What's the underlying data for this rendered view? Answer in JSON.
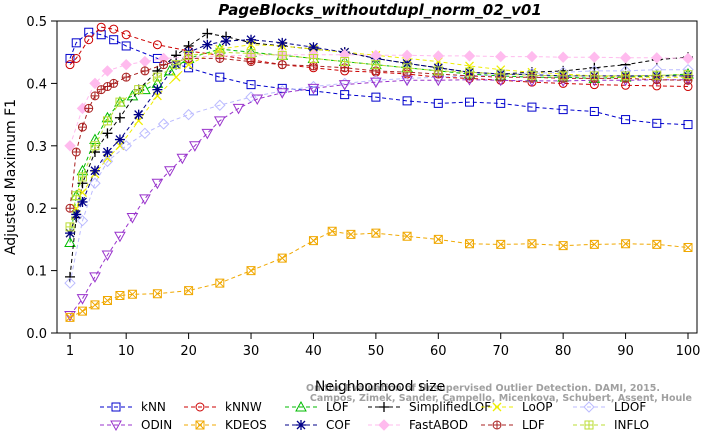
{
  "chart_data": {
    "type": "line",
    "title": "PageBlocks_withoutdupl_norm_02_v01",
    "xlabel": "Neighborhood size",
    "ylabel": "Adjusted Maximum F1",
    "xlim": [
      1,
      100
    ],
    "ylim": [
      0.0,
      0.5
    ],
    "x_ticks": [
      "1",
      "10",
      "20",
      "30",
      "40",
      "50",
      "60",
      "70",
      "80",
      "90",
      "100"
    ],
    "y_ticks": [
      "0.0",
      "0.1",
      "0.2",
      "0.3",
      "0.4",
      "0.5"
    ],
    "grid": false,
    "legend_position": "bottom",
    "series": [
      {
        "name": "kNN",
        "color": "#0000cc",
        "marker": "square",
        "x": [
          1,
          2,
          4,
          6,
          8,
          10,
          15,
          20,
          25,
          30,
          35,
          40,
          45,
          50,
          55,
          60,
          65,
          70,
          75,
          80,
          85,
          90,
          95,
          100
        ],
        "y": [
          0.44,
          0.465,
          0.482,
          0.478,
          0.47,
          0.46,
          0.44,
          0.425,
          0.41,
          0.398,
          0.392,
          0.388,
          0.382,
          0.378,
          0.372,
          0.368,
          0.37,
          0.368,
          0.362,
          0.358,
          0.355,
          0.342,
          0.336,
          0.334
        ]
      },
      {
        "name": "kNNW",
        "color": "#cc0000",
        "marker": "circle",
        "x": [
          1,
          2,
          4,
          6,
          8,
          10,
          15,
          20,
          25,
          30,
          35,
          40,
          45,
          50,
          55,
          60,
          65,
          70,
          75,
          80,
          85,
          90,
          95,
          100
        ],
        "y": [
          0.43,
          0.44,
          0.47,
          0.49,
          0.487,
          0.478,
          0.462,
          0.452,
          0.445,
          0.438,
          0.43,
          0.425,
          0.42,
          0.418,
          0.415,
          0.41,
          0.408,
          0.405,
          0.402,
          0.4,
          0.398,
          0.397,
          0.396,
          0.395
        ]
      },
      {
        "name": "LOF",
        "color": "#00bb00",
        "marker": "triangle-up",
        "x": [
          1,
          2,
          3,
          5,
          7,
          9,
          11,
          13,
          15,
          17,
          20,
          25,
          30,
          35,
          40,
          45,
          50,
          55,
          60,
          65,
          70,
          75,
          80,
          85,
          90,
          95,
          100
        ],
        "y": [
          0.145,
          0.22,
          0.26,
          0.31,
          0.345,
          0.37,
          0.38,
          0.39,
          0.4,
          0.42,
          0.44,
          0.455,
          0.45,
          0.445,
          0.44,
          0.435,
          0.43,
          0.425,
          0.42,
          0.415,
          0.412,
          0.41,
          0.41,
          0.408,
          0.41,
          0.412,
          0.415
        ]
      },
      {
        "name": "SimplifiedLOF",
        "color": "#000000",
        "marker": "plus",
        "x": [
          1,
          2,
          3,
          5,
          7,
          9,
          12,
          15,
          18,
          20,
          23,
          26,
          30,
          35,
          40,
          45,
          50,
          55,
          60,
          65,
          70,
          75,
          80,
          85,
          90,
          95,
          100
        ],
        "y": [
          0.09,
          0.185,
          0.24,
          0.29,
          0.32,
          0.345,
          0.39,
          0.42,
          0.445,
          0.46,
          0.48,
          0.475,
          0.465,
          0.46,
          0.455,
          0.45,
          0.44,
          0.432,
          0.425,
          0.418,
          0.415,
          0.418,
          0.42,
          0.425,
          0.43,
          0.438,
          0.442
        ]
      },
      {
        "name": "LoOP",
        "color": "#eeee00",
        "marker": "x",
        "x": [
          1,
          2,
          3,
          5,
          7,
          9,
          12,
          15,
          18,
          20,
          25,
          30,
          35,
          40,
          45,
          50,
          55,
          60,
          65,
          70,
          75,
          80,
          85,
          90,
          95,
          100
        ],
        "y": [
          0.16,
          0.2,
          0.225,
          0.255,
          0.28,
          0.3,
          0.34,
          0.38,
          0.41,
          0.43,
          0.455,
          0.462,
          0.46,
          0.455,
          0.45,
          0.445,
          0.44,
          0.435,
          0.428,
          0.422,
          0.418,
          0.415,
          0.412,
          0.41,
          0.41,
          0.41
        ]
      },
      {
        "name": "LDOF",
        "color": "#bbbbff",
        "marker": "diamond",
        "x": [
          1,
          3,
          5,
          7,
          10,
          13,
          16,
          20,
          25,
          30,
          35,
          40,
          45,
          50,
          55,
          60,
          65,
          70,
          75,
          80,
          85,
          90,
          95,
          100
        ],
        "y": [
          0.08,
          0.18,
          0.24,
          0.275,
          0.3,
          0.32,
          0.335,
          0.35,
          0.365,
          0.378,
          0.388,
          0.395,
          0.4,
          0.405,
          0.408,
          0.41,
          0.412,
          0.414,
          0.416,
          0.418,
          0.42,
          0.42,
          0.422,
          0.422
        ]
      },
      {
        "name": "ODIN",
        "color": "#9933cc",
        "marker": "triangle-down",
        "x": [
          1,
          3,
          5,
          7,
          9,
          11,
          13,
          15,
          17,
          19,
          21,
          23,
          25,
          28,
          31,
          35,
          40,
          45,
          50,
          55,
          60,
          65,
          70,
          75,
          80,
          85,
          90,
          95,
          100
        ],
        "y": [
          0.028,
          0.055,
          0.09,
          0.125,
          0.155,
          0.185,
          0.215,
          0.24,
          0.26,
          0.28,
          0.3,
          0.32,
          0.34,
          0.36,
          0.375,
          0.385,
          0.392,
          0.398,
          0.402,
          0.405,
          0.405,
          0.406,
          0.405,
          0.404,
          0.404,
          0.405,
          0.405,
          0.406,
          0.406
        ]
      },
      {
        "name": "KDEOS",
        "color": "#f0a800",
        "marker": "square-x",
        "x": [
          1,
          3,
          5,
          7,
          9,
          11,
          15,
          20,
          25,
          30,
          35,
          40,
          43,
          46,
          50,
          55,
          60,
          65,
          70,
          75,
          80,
          85,
          90,
          95,
          100
        ],
        "y": [
          0.025,
          0.035,
          0.045,
          0.052,
          0.06,
          0.062,
          0.063,
          0.068,
          0.08,
          0.1,
          0.12,
          0.148,
          0.163,
          0.158,
          0.16,
          0.155,
          0.15,
          0.143,
          0.142,
          0.143,
          0.14,
          0.142,
          0.143,
          0.142,
          0.137
        ]
      },
      {
        "name": "COF",
        "color": "#000088",
        "marker": "asterisk",
        "x": [
          1,
          2,
          3,
          5,
          7,
          9,
          12,
          15,
          18,
          20,
          23,
          26,
          30,
          35,
          40,
          45,
          50,
          55,
          60,
          65,
          70,
          75,
          80,
          85,
          90,
          95,
          100
        ],
        "y": [
          0.16,
          0.19,
          0.21,
          0.26,
          0.29,
          0.31,
          0.35,
          0.39,
          0.43,
          0.45,
          0.462,
          0.468,
          0.47,
          0.465,
          0.458,
          0.45,
          0.44,
          0.432,
          0.425,
          0.418,
          0.415,
          0.414,
          0.412,
          0.412,
          0.412,
          0.412,
          0.412
        ]
      },
      {
        "name": "FastABOD",
        "color": "#ffbbee",
        "marker": "diamond-filled",
        "x": [
          1,
          3,
          5,
          7,
          10,
          13,
          16,
          20,
          25,
          30,
          35,
          40,
          45,
          50,
          55,
          60,
          65,
          70,
          75,
          80,
          85,
          90,
          95,
          100
        ],
        "y": [
          0.3,
          0.36,
          0.4,
          0.42,
          0.43,
          0.435,
          0.44,
          0.442,
          0.444,
          0.445,
          0.446,
          0.446,
          0.446,
          0.445,
          0.445,
          0.444,
          0.444,
          0.443,
          0.443,
          0.442,
          0.442,
          0.441,
          0.441,
          0.44
        ]
      },
      {
        "name": "LDF",
        "color": "#aa2222",
        "marker": "circle-plus",
        "x": [
          1,
          2,
          3,
          4,
          5,
          6,
          7,
          8,
          10,
          13,
          16,
          20,
          25,
          30,
          35,
          40,
          45,
          50,
          55,
          60,
          65,
          70,
          75,
          80,
          85,
          90,
          95,
          100
        ],
        "y": [
          0.2,
          0.29,
          0.33,
          0.36,
          0.38,
          0.39,
          0.395,
          0.4,
          0.41,
          0.42,
          0.43,
          0.44,
          0.44,
          0.435,
          0.43,
          0.428,
          0.425,
          0.42,
          0.418,
          0.415,
          0.412,
          0.41,
          0.41,
          0.408,
          0.408,
          0.408,
          0.406,
          0.405
        ]
      },
      {
        "name": "INFLO",
        "color": "#bbdd33",
        "marker": "square-plus",
        "x": [
          1,
          2,
          3,
          5,
          7,
          9,
          12,
          15,
          18,
          20,
          25,
          30,
          35,
          40,
          45,
          50,
          55,
          60,
          65,
          70,
          75,
          80,
          85,
          90,
          95,
          100
        ],
        "y": [
          0.17,
          0.22,
          0.25,
          0.3,
          0.34,
          0.37,
          0.39,
          0.41,
          0.43,
          0.445,
          0.45,
          0.448,
          0.445,
          0.44,
          0.435,
          0.43,
          0.425,
          0.42,
          0.418,
          0.415,
          0.413,
          0.412,
          0.412,
          0.412,
          0.413,
          0.414
        ]
      }
    ]
  },
  "watermark": {
    "line1": "Campos, Zimek, Sander, Campello, Micenkova, Schubert, Assent, Houle",
    "line2": "On the Evaluation of Unsupervised Outlier Detection. DAMI, 2015."
  }
}
